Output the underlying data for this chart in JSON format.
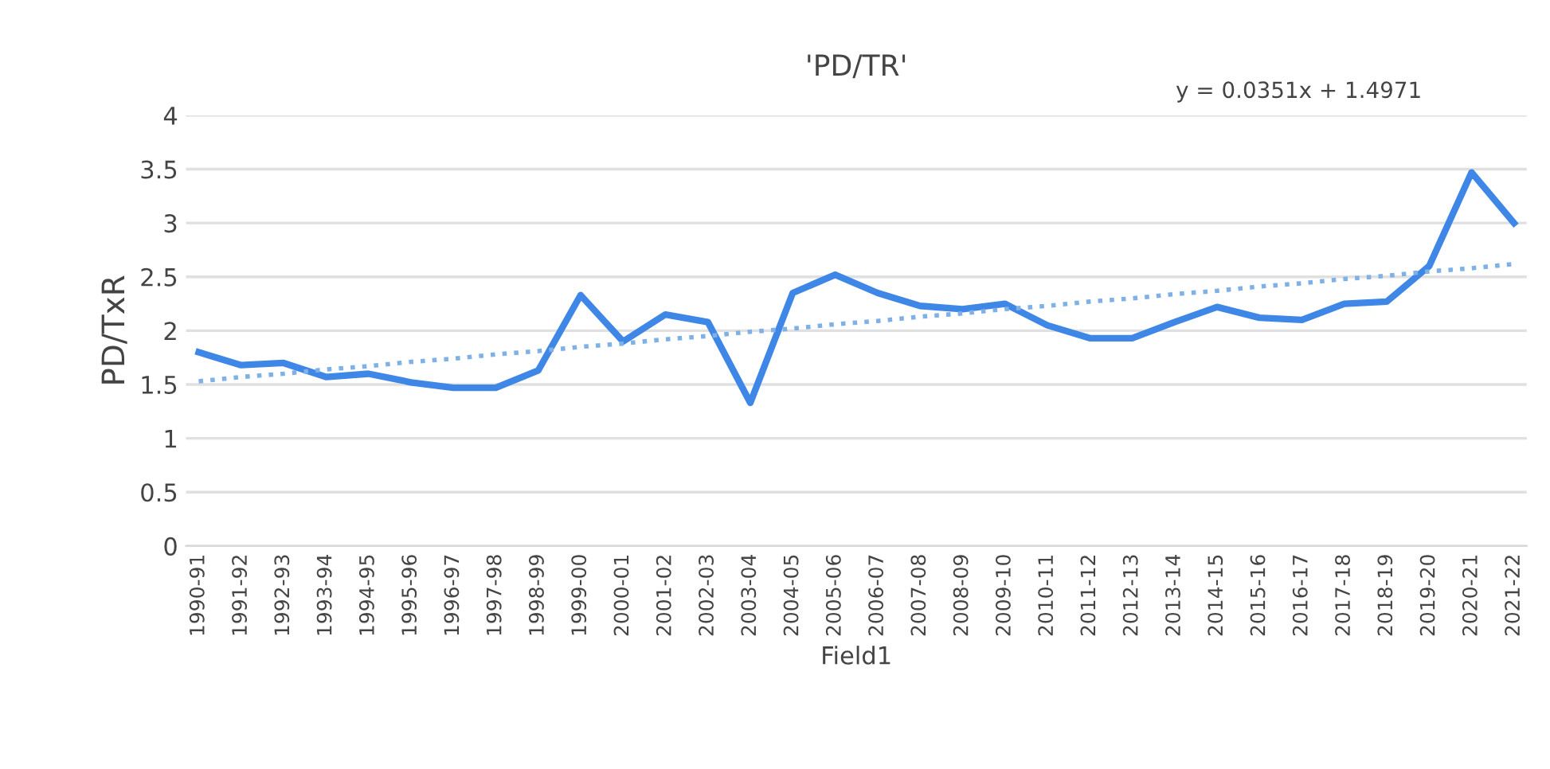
{
  "chart_data": {
    "type": "line",
    "title": "'PD/TR'",
    "xlabel": "Field1",
    "ylabel": "PD/TxR",
    "categories": [
      "1990-91",
      "1991-92",
      "1992-93",
      "1993-94",
      "1994-95",
      "1995-96",
      "1996-97",
      "1997-98",
      "1998-99",
      "1999-00",
      "2000-01",
      "2001-02",
      "2002-03",
      "2003-04",
      "2004-05",
      "2005-06",
      "2006-07",
      "2007-08",
      "2008-09",
      "2009-10",
      "2010-11",
      "2011-12",
      "2012-13",
      "2013-14",
      "2014-15",
      "2015-16",
      "2016-17",
      "2017-18",
      "2018-19",
      "2019-20",
      "2020-21",
      "2021-22"
    ],
    "series": [
      {
        "color": "#3f87e6",
        "line_style": "solid",
        "values": [
          1.8,
          1.68,
          1.7,
          1.57,
          1.6,
          1.52,
          1.47,
          1.47,
          1.63,
          2.33,
          1.9,
          2.15,
          2.08,
          1.33,
          2.35,
          2.52,
          2.35,
          2.23,
          2.2,
          2.25,
          2.05,
          1.93,
          1.93,
          2.08,
          2.22,
          2.12,
          2.1,
          2.25,
          2.27,
          2.6,
          3.47,
          3.0
        ]
      },
      {
        "color": "#7fb0e6",
        "line_style": "dotted",
        "values": [
          1.53,
          1.57,
          1.6,
          1.64,
          1.67,
          1.71,
          1.74,
          1.78,
          1.81,
          1.85,
          1.88,
          1.92,
          1.95,
          1.99,
          2.02,
          2.06,
          2.09,
          2.13,
          2.16,
          2.2,
          2.23,
          2.27,
          2.3,
          2.34,
          2.37,
          2.41,
          2.44,
          2.48,
          2.51,
          2.55,
          2.58,
          2.62
        ]
      }
    ],
    "annotations": [
      "y = 0.0351x + 1.4971"
    ],
    "ylim": [
      0,
      4
    ],
    "yticks": [
      0,
      0.5,
      1,
      1.5,
      2,
      2.5,
      3,
      3.5,
      4
    ],
    "grid": "y",
    "legend": false,
    "marker": "none"
  }
}
